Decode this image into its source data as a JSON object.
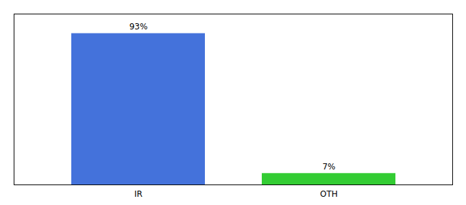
{
  "chart_data": {
    "type": "bar",
    "categories": [
      "IR",
      "OTH"
    ],
    "values": [
      93,
      7
    ],
    "value_labels": [
      "93%",
      "7%"
    ],
    "colors": [
      "#4472db",
      "#33cc33"
    ],
    "ylim": [
      0,
      105
    ],
    "data_labels": true,
    "tick_labels": "x"
  }
}
